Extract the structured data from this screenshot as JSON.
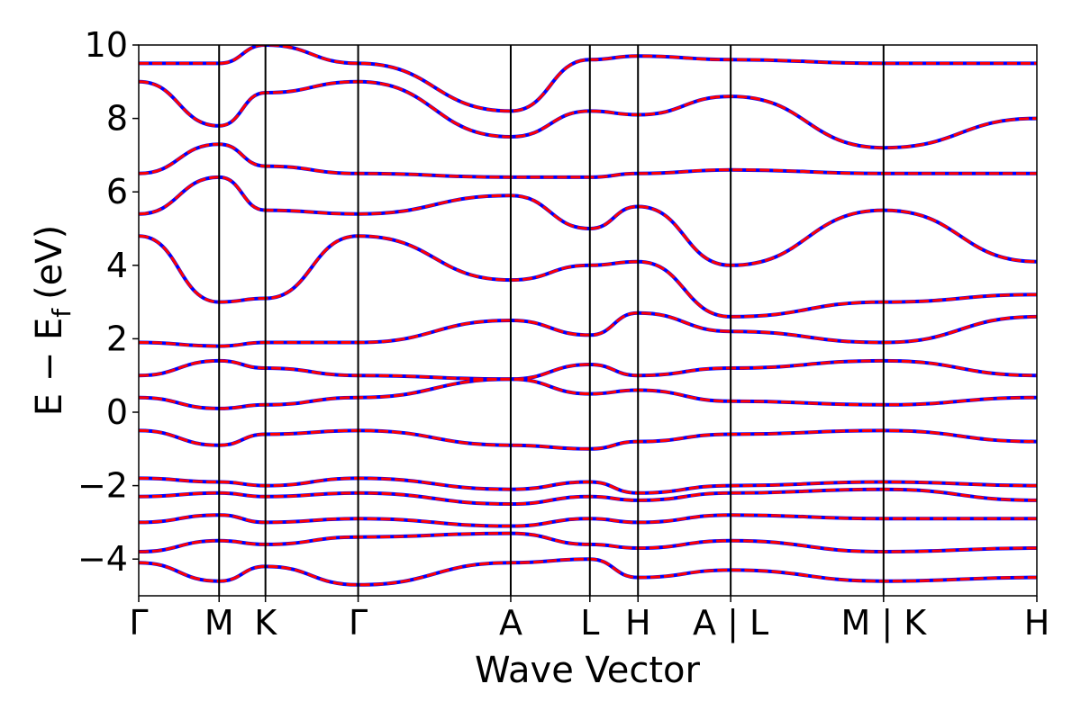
{
  "chart_data": {
    "type": "line",
    "title": "",
    "xlabel": "Wave Vector",
    "ylabel": "E − E",
    "ylabel_subscript": "f",
    "ylabel_unit": "(eV)",
    "ylim": [
      -5,
      10
    ],
    "yticks": [
      -4,
      -2,
      0,
      2,
      4,
      6,
      8,
      10
    ],
    "ytick_labels": [
      "−4",
      "−2",
      "0",
      "2",
      "4",
      "6",
      "8",
      "10"
    ],
    "x_ticks": [
      0,
      0.0895,
      0.1411,
      0.2443,
      0.4142,
      0.5023,
      0.5559,
      0.6591,
      0.8293,
      1.0
    ],
    "x_tick_labels": [
      "Γ",
      "M",
      "K",
      "Γ",
      "A",
      "L",
      "H",
      "A | L",
      "M | K",
      "H"
    ],
    "grid": false,
    "legend": "none",
    "colors": {
      "series_a": "#0000ff",
      "series_b": "#ff0000"
    },
    "series": [
      {
        "style": "solid-blue",
        "values": [
          [
            -4.1,
            -4.6,
            -4.2,
            -4.7,
            -4.1,
            -4.0,
            -4.5,
            -4.3,
            -4.6,
            -4.5
          ],
          [
            -3.8,
            -3.5,
            -3.6,
            -3.4,
            -3.3,
            -3.6,
            -3.7,
            -3.5,
            -3.8,
            -3.7
          ],
          [
            -3.0,
            -2.8,
            -3.0,
            -2.9,
            -3.1,
            -2.9,
            -3.0,
            -2.8,
            -2.9,
            -2.9
          ],
          [
            -2.3,
            -2.2,
            -2.3,
            -2.2,
            -2.5,
            -2.3,
            -2.4,
            -2.2,
            -2.1,
            -2.4
          ],
          [
            -1.8,
            -1.9,
            -2.0,
            -1.8,
            -2.1,
            -1.9,
            -2.2,
            -2.0,
            -1.9,
            -2.0
          ],
          [
            -0.5,
            -0.9,
            -0.6,
            -0.5,
            -0.9,
            -1.0,
            -0.8,
            -0.6,
            -0.5,
            -0.8
          ],
          [
            0.4,
            0.1,
            0.2,
            0.4,
            0.9,
            0.5,
            0.6,
            0.3,
            0.2,
            0.4
          ],
          [
            1.0,
            1.4,
            1.2,
            1.0,
            0.9,
            1.3,
            1.0,
            1.2,
            1.4,
            1.0
          ],
          [
            1.9,
            1.8,
            1.9,
            1.9,
            2.5,
            2.1,
            2.7,
            2.2,
            1.9,
            2.6
          ],
          [
            4.8,
            3.0,
            3.1,
            4.8,
            3.6,
            4.0,
            4.1,
            2.6,
            3.0,
            3.2
          ],
          [
            5.4,
            6.4,
            5.5,
            5.4,
            5.9,
            5.0,
            5.6,
            4.0,
            5.5,
            4.1
          ],
          [
            6.5,
            7.3,
            6.7,
            6.5,
            6.4,
            6.4,
            6.5,
            6.6,
            6.5,
            6.5
          ],
          [
            9.0,
            7.8,
            8.7,
            9.0,
            7.5,
            8.2,
            8.1,
            8.6,
            7.2,
            8.0
          ],
          [
            9.5,
            9.5,
            10.0,
            9.5,
            8.2,
            9.6,
            9.7,
            9.6,
            9.5,
            9.5
          ]
        ]
      },
      {
        "style": "dashed-red",
        "values": [
          [
            -4.1,
            -4.6,
            -4.2,
            -4.7,
            -4.1,
            -4.0,
            -4.5,
            -4.3,
            -4.6,
            -4.5
          ],
          [
            -3.8,
            -3.5,
            -3.6,
            -3.4,
            -3.3,
            -3.6,
            -3.7,
            -3.5,
            -3.8,
            -3.7
          ],
          [
            -3.0,
            -2.8,
            -3.0,
            -2.9,
            -3.1,
            -2.9,
            -3.0,
            -2.8,
            -2.9,
            -2.9
          ],
          [
            -2.3,
            -2.2,
            -2.3,
            -2.2,
            -2.5,
            -2.3,
            -2.4,
            -2.2,
            -2.1,
            -2.4
          ],
          [
            -1.8,
            -1.9,
            -2.0,
            -1.8,
            -2.1,
            -1.9,
            -2.2,
            -2.0,
            -1.9,
            -2.0
          ],
          [
            -0.5,
            -0.9,
            -0.6,
            -0.5,
            -0.9,
            -1.0,
            -0.8,
            -0.6,
            -0.5,
            -0.8
          ],
          [
            0.4,
            0.1,
            0.2,
            0.4,
            0.9,
            0.5,
            0.6,
            0.3,
            0.2,
            0.4
          ],
          [
            1.0,
            1.4,
            1.2,
            1.0,
            0.9,
            1.3,
            1.0,
            1.2,
            1.4,
            1.0
          ],
          [
            1.9,
            1.8,
            1.9,
            1.9,
            2.5,
            2.1,
            2.7,
            2.2,
            1.9,
            2.6
          ],
          [
            4.8,
            3.0,
            3.1,
            4.8,
            3.6,
            4.0,
            4.1,
            2.6,
            3.0,
            3.2
          ],
          [
            5.4,
            6.4,
            5.5,
            5.4,
            5.9,
            5.0,
            5.6,
            4.0,
            5.5,
            4.1
          ],
          [
            6.5,
            7.3,
            6.7,
            6.5,
            6.4,
            6.4,
            6.5,
            6.6,
            6.5,
            6.5
          ],
          [
            9.0,
            7.8,
            8.7,
            9.0,
            7.5,
            8.2,
            8.1,
            8.6,
            7.2,
            8.0
          ],
          [
            9.5,
            9.5,
            10.0,
            9.5,
            8.2,
            9.6,
            9.7,
            9.6,
            9.5,
            9.5
          ]
        ]
      }
    ]
  }
}
